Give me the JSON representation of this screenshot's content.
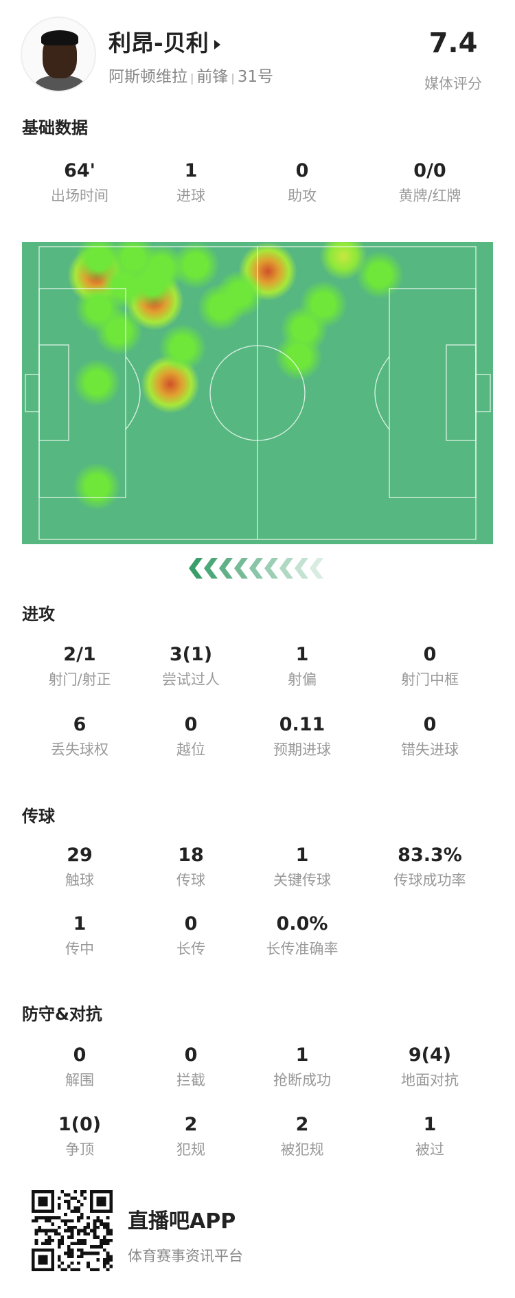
{
  "player": {
    "name": "利昂-贝利",
    "team": "阿斯顿维拉",
    "position": "前锋",
    "number": "31号",
    "separator": "|",
    "rating": "7.4",
    "rating_label": "媒体评分"
  },
  "sections": {
    "basic": {
      "title": "基础数据",
      "stats": [
        {
          "value": "64'",
          "label": "出场时间"
        },
        {
          "value": "1",
          "label": "进球"
        },
        {
          "value": "0",
          "label": "助攻"
        },
        {
          "value": "0/0",
          "label": "黄牌/红牌"
        }
      ]
    },
    "attack": {
      "title": "进攻",
      "stats": [
        {
          "value": "2/1",
          "label": "射门/射正"
        },
        {
          "value": "3(1)",
          "label": "尝试过人"
        },
        {
          "value": "1",
          "label": "射偏"
        },
        {
          "value": "0",
          "label": "射门中框"
        },
        {
          "value": "6",
          "label": "丢失球权"
        },
        {
          "value": "0",
          "label": "越位"
        },
        {
          "value": "0.11",
          "label": "预期进球"
        },
        {
          "value": "0",
          "label": "错失进球"
        }
      ]
    },
    "passing": {
      "title": "传球",
      "stats": [
        {
          "value": "29",
          "label": "触球"
        },
        {
          "value": "18",
          "label": "传球"
        },
        {
          "value": "1",
          "label": "关键传球"
        },
        {
          "value": "83.3%",
          "label": "传球成功率"
        },
        {
          "value": "1",
          "label": "传中"
        },
        {
          "value": "0",
          "label": "长传"
        },
        {
          "value": "0.0%",
          "label": "长传准确率"
        }
      ]
    },
    "defense": {
      "title": "防守&对抗",
      "stats": [
        {
          "value": "0",
          "label": "解围"
        },
        {
          "value": "0",
          "label": "拦截"
        },
        {
          "value": "1",
          "label": "抢断成功"
        },
        {
          "value": "9(4)",
          "label": "地面对抗"
        },
        {
          "value": "1(0)",
          "label": "争顶"
        },
        {
          "value": "2",
          "label": "犯规"
        },
        {
          "value": "2",
          "label": "被犯规"
        },
        {
          "value": "1",
          "label": "被过"
        }
      ]
    }
  },
  "heatmap": {
    "pitch_color": "#56b880",
    "direction_icon": "chevron-left-icon",
    "attack_direction": "left"
  },
  "footer": {
    "app_name": "直播吧APP",
    "tagline": "体育赛事资讯平台",
    "qr_icon": "qr-code-icon"
  }
}
